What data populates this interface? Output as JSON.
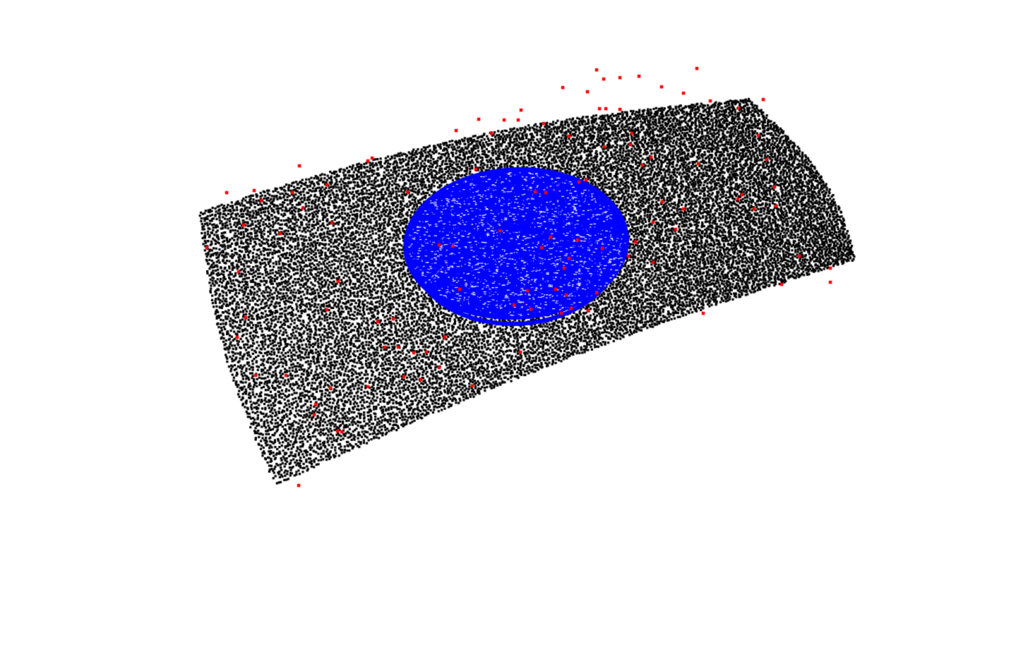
{
  "viewer": {
    "background_color": "#ffffff"
  },
  "point_cloud": {
    "layers": [
      {
        "name": "surface-sheet",
        "color": "#000000",
        "shape": "curved-sheet"
      },
      {
        "name": "dome",
        "color": "#0000ff",
        "shape": "hemisphere"
      },
      {
        "name": "outliers",
        "color": "#ff0000",
        "shape": "scattered-points"
      }
    ]
  }
}
